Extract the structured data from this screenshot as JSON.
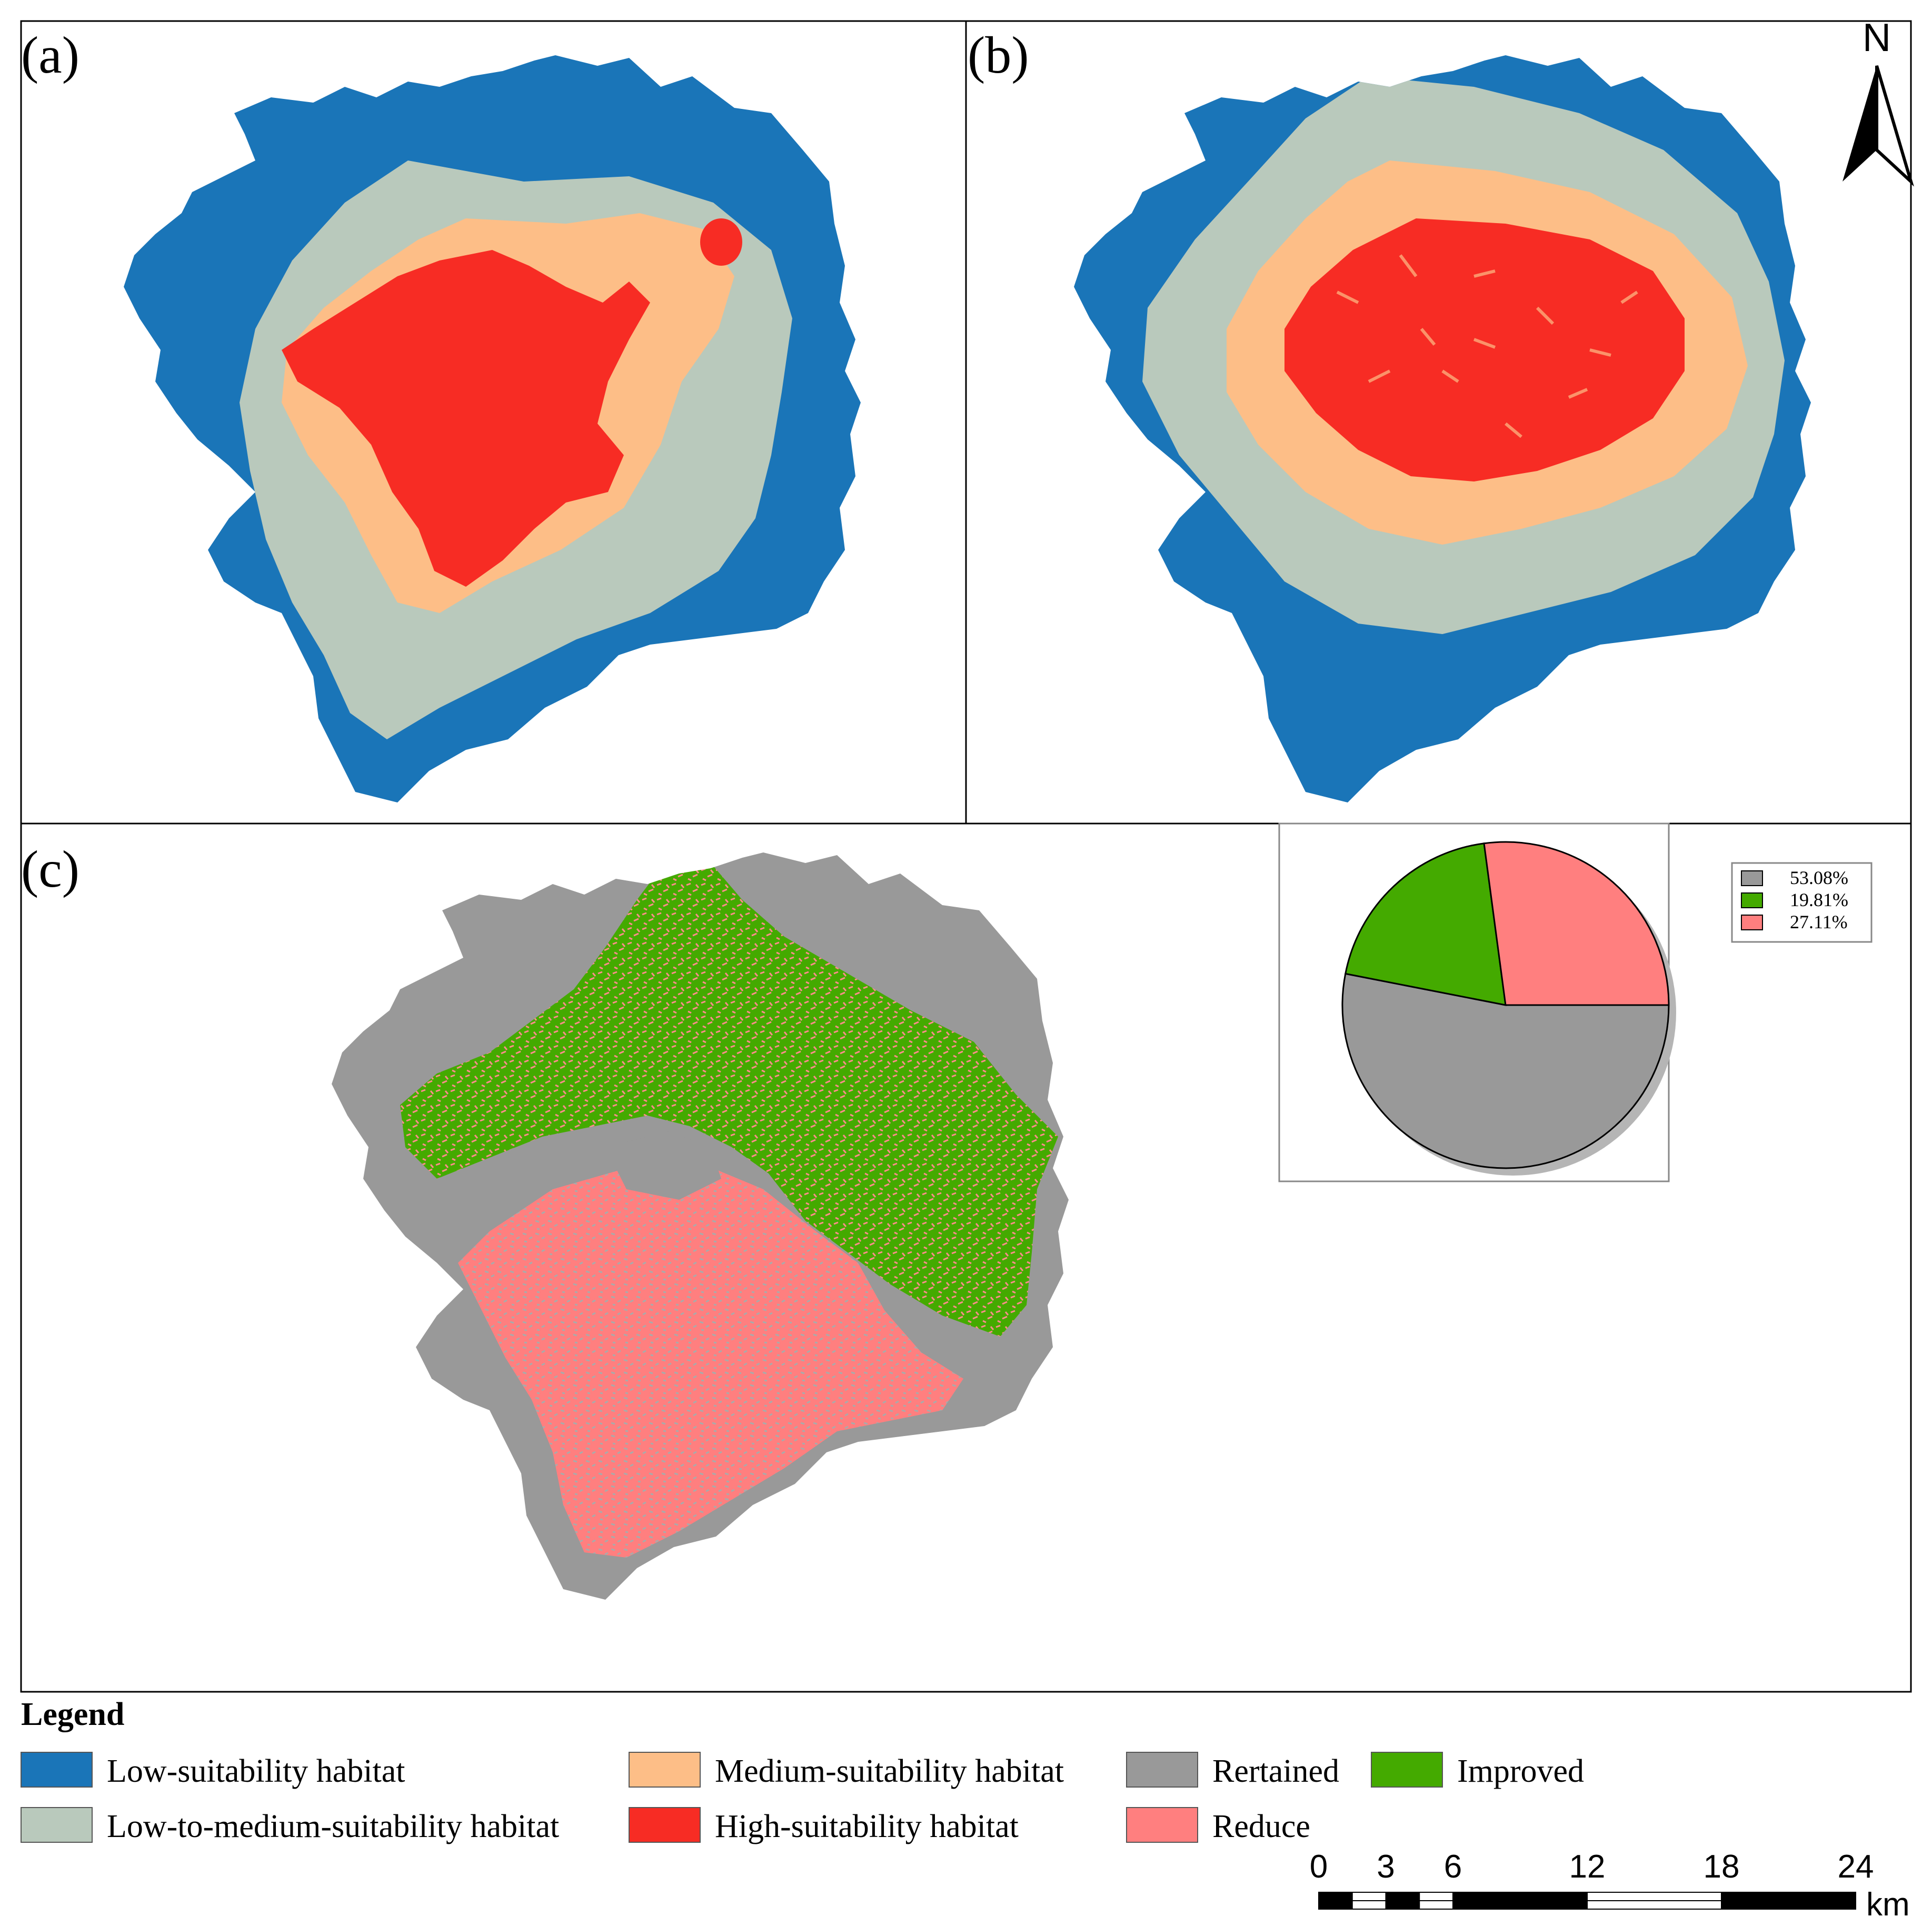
{
  "panels": {
    "a": {
      "label": "(a)"
    },
    "b": {
      "label": "(b)"
    },
    "c": {
      "label": "(c)"
    }
  },
  "north_arrow": {
    "label": "N"
  },
  "pie_inset": {
    "chart_data": {
      "type": "pie",
      "slices": [
        {
          "label": "53.08%",
          "value": 53.08,
          "color": "#999999",
          "category": "Rertained"
        },
        {
          "label": "19.81%",
          "value": 19.81,
          "color": "#44aa00",
          "category": "Improved"
        },
        {
          "label": "27.11%",
          "value": 27.11,
          "color": "#ff7f7f",
          "category": "Reduce"
        }
      ]
    }
  },
  "legend": {
    "title": "Legend",
    "items": [
      {
        "label": "Low-suitability habitat",
        "color": "#1a75b8"
      },
      {
        "label": "Low-to-medium-suitability habitat",
        "color": "#b9c9bc"
      },
      {
        "label": "Medium-suitability habitat",
        "color": "#fdbe87"
      },
      {
        "label": "High-suitability habitat",
        "color": "#f72c24"
      },
      {
        "label": "Rertained",
        "color": "#999999"
      },
      {
        "label": "Improved",
        "color": "#44aa00"
      },
      {
        "label": "Reduce",
        "color": "#ff7f7f"
      }
    ]
  },
  "scale_bar": {
    "ticks": [
      "0",
      "3",
      "6",
      "12",
      "18",
      "24"
    ],
    "unit": "km"
  }
}
